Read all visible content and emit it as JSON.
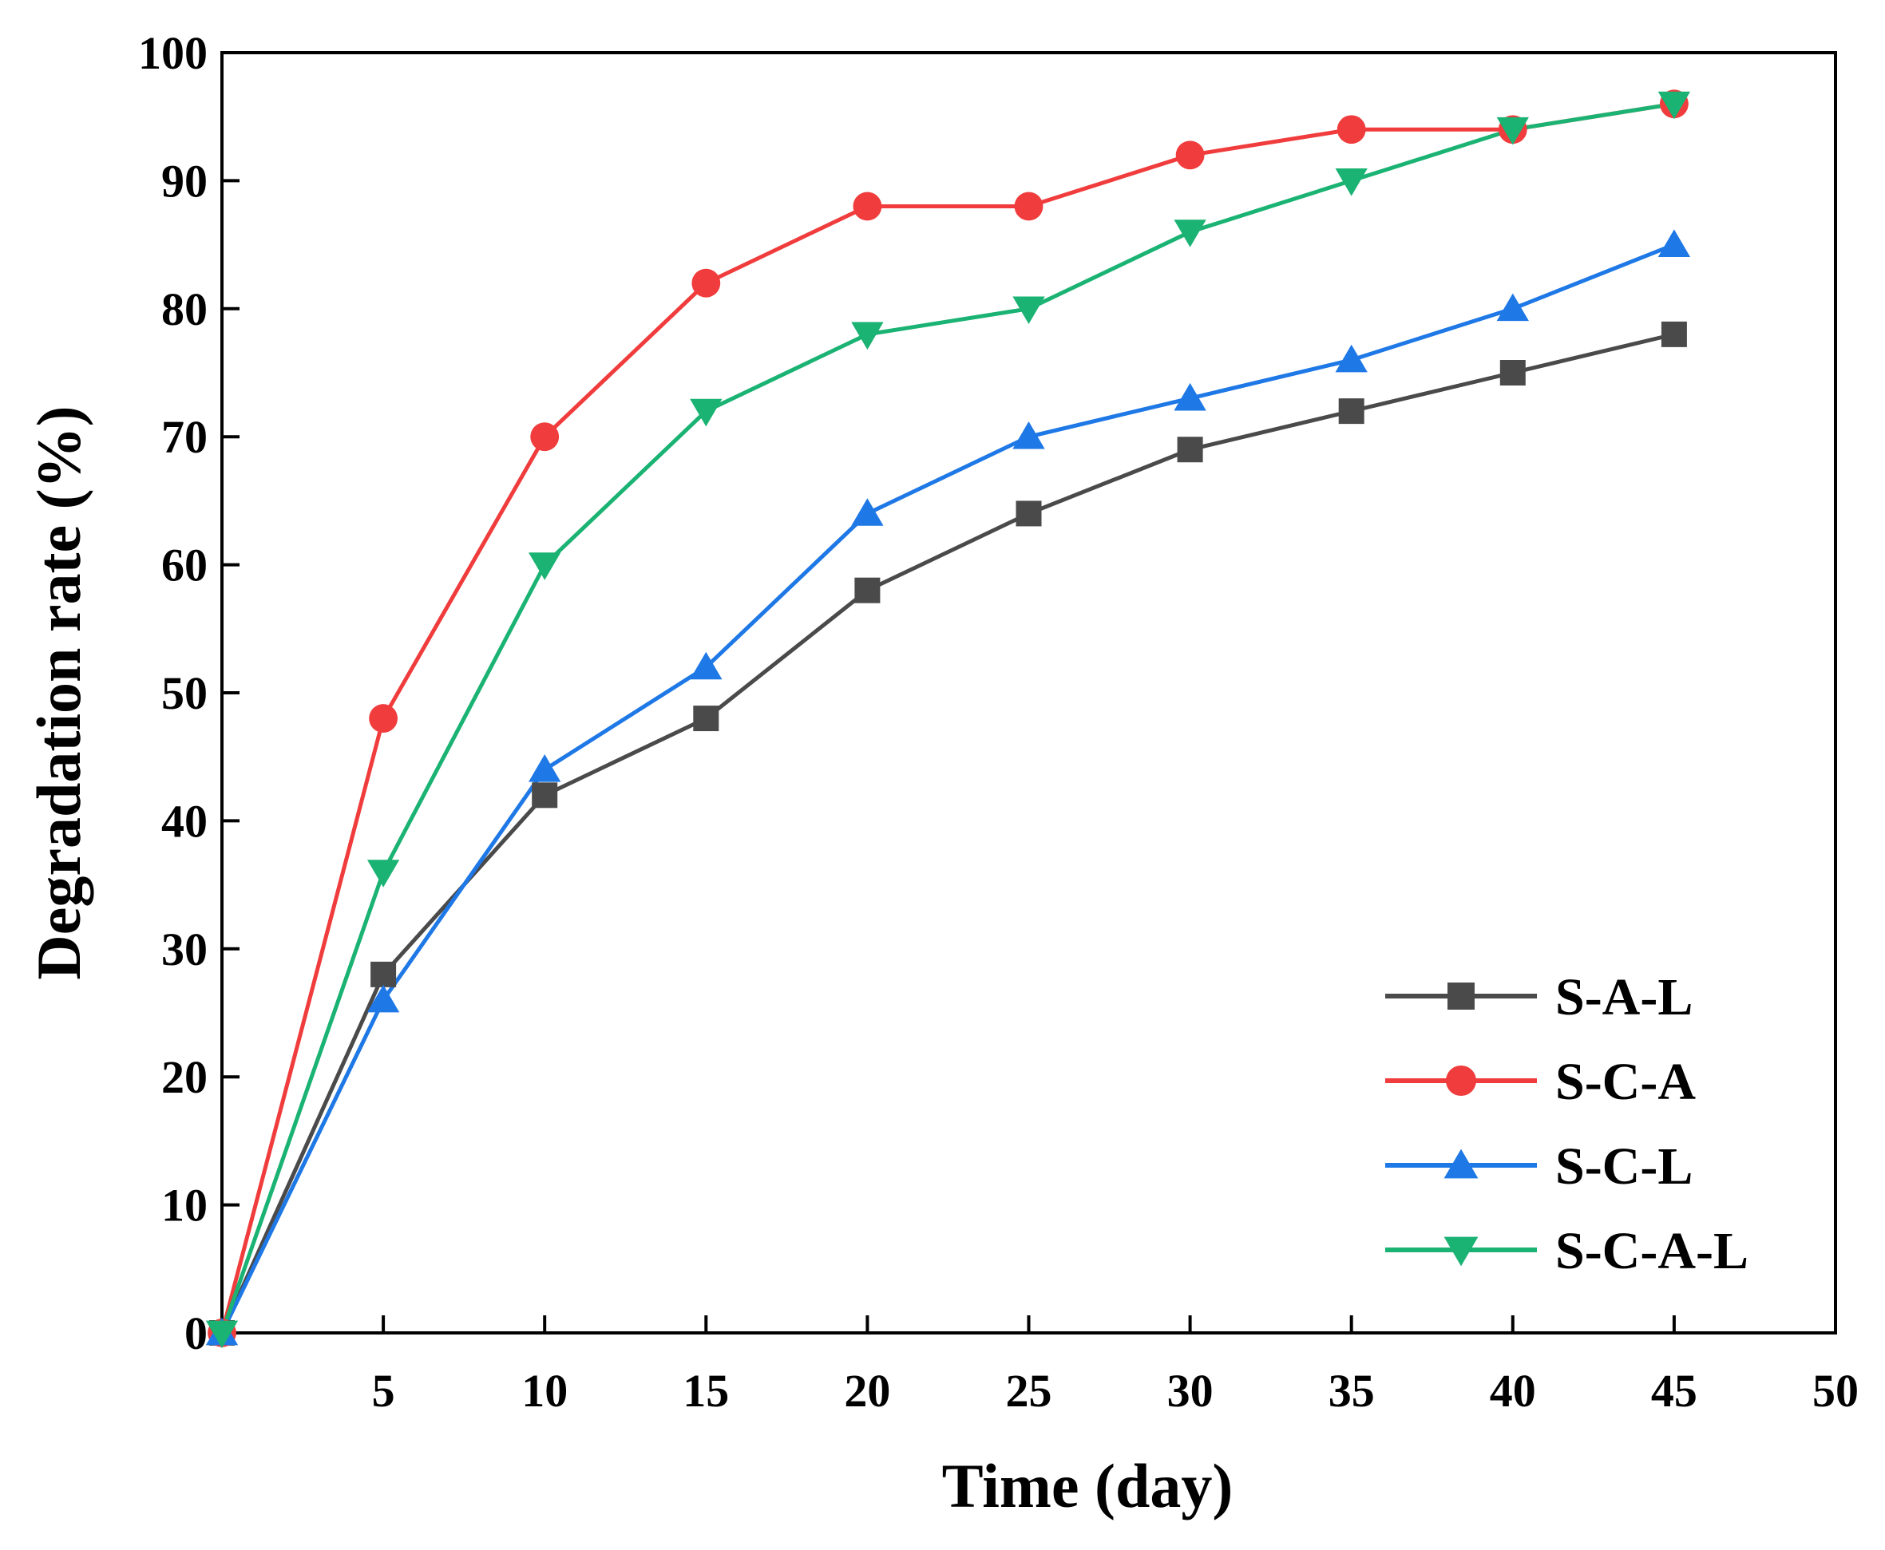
{
  "chart_data": {
    "type": "line",
    "title": "",
    "xlabel": "Time (day)",
    "ylabel": "Degradation rate (%)",
    "xlim": [
      0,
      50
    ],
    "ylim": [
      0,
      100
    ],
    "x_ticks": [
      5,
      10,
      15,
      20,
      25,
      30,
      35,
      40,
      45,
      50
    ],
    "y_ticks": [
      0,
      10,
      20,
      30,
      40,
      50,
      60,
      70,
      80,
      90,
      100
    ],
    "grid": false,
    "legend_position": "bottom-right",
    "x": [
      0,
      5,
      10,
      15,
      20,
      25,
      30,
      35,
      40,
      45
    ],
    "series": [
      {
        "name": "S-A-L",
        "color": "#4a4a4a",
        "marker": "square",
        "values": [
          0,
          28,
          42,
          48,
          58,
          64,
          69,
          72,
          75,
          78
        ]
      },
      {
        "name": "S-C-A",
        "color": "#f03c3c",
        "marker": "circle",
        "values": [
          0,
          48,
          70,
          82,
          88,
          88,
          92,
          94,
          94,
          96
        ]
      },
      {
        "name": "S-C-L",
        "color": "#1e78e6",
        "marker": "triangle-up",
        "values": [
          0,
          26,
          44,
          52,
          64,
          70,
          73,
          76,
          80,
          85
        ]
      },
      {
        "name": "S-C-A-L",
        "color": "#1ab373",
        "marker": "triangle-down",
        "values": [
          0,
          36,
          60,
          72,
          78,
          80,
          86,
          90,
          94,
          96
        ]
      }
    ]
  }
}
